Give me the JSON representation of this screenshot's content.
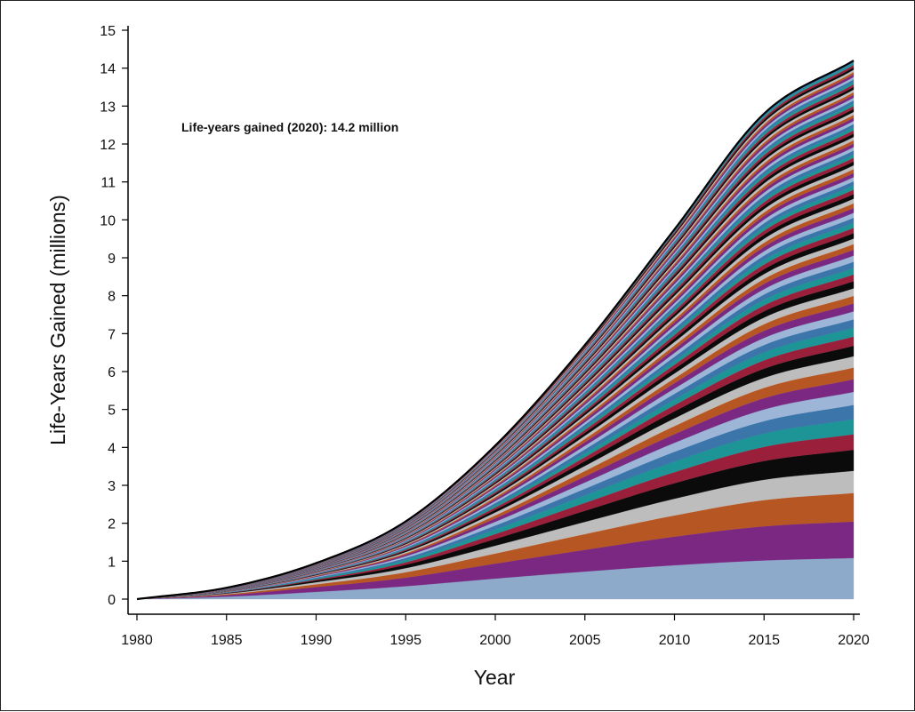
{
  "chart_data": {
    "type": "area",
    "stacked": true,
    "xlabel": "Year",
    "ylabel": "Life-Years Gained (millions)",
    "annotation": "Life-years gained (2020): 14.2 million",
    "xlim": [
      1980,
      2020
    ],
    "ylim": [
      0,
      15
    ],
    "x_ticks": [
      1980,
      1985,
      1990,
      1995,
      2000,
      2005,
      2010,
      2015,
      2020
    ],
    "y_ticks": [
      0,
      1,
      2,
      3,
      4,
      5,
      6,
      7,
      8,
      9,
      10,
      11,
      12,
      13,
      14,
      15
    ],
    "grid": false,
    "legend": "none",
    "x": [
      1980,
      1985,
      1990,
      1995,
      2000,
      2005,
      2010,
      2015,
      2020
    ],
    "total": [
      0.0,
      0.3,
      0.95,
      2.05,
      4.05,
      6.7,
      9.75,
      12.8,
      14.2
    ],
    "bands": [
      {
        "color": "#8eaacb",
        "values": [
          0.0,
          0.08,
          0.21,
          0.38,
          0.55,
          0.7,
          0.83,
          0.93,
          0.98
        ]
      },
      {
        "color": "#7b2883",
        "values": [
          0.0,
          0.05,
          0.14,
          0.25,
          0.4,
          0.55,
          0.7,
          0.82,
          0.87
        ]
      },
      {
        "color": "#b55623",
        "values": [
          0.0,
          0.03,
          0.08,
          0.16,
          0.27,
          0.4,
          0.52,
          0.63,
          0.68
        ]
      },
      {
        "color": "#bdbdbd",
        "values": [
          0.0,
          0.02,
          0.06,
          0.12,
          0.21,
          0.31,
          0.41,
          0.49,
          0.53
        ]
      },
      {
        "color": "#0b0b0b",
        "values": [
          0.0,
          0.015,
          0.05,
          0.1,
          0.18,
          0.28,
          0.38,
          0.45,
          0.5
        ]
      },
      {
        "color": "#9a1f3a",
        "values": [
          0.0,
          0.01,
          0.03,
          0.07,
          0.13,
          0.2,
          0.27,
          0.34,
          0.37
        ]
      },
      {
        "color": "#1d9596",
        "values": [
          0.0,
          0.01,
          0.03,
          0.07,
          0.12,
          0.19,
          0.26,
          0.32,
          0.36
        ]
      },
      {
        "color": "#3c75a9",
        "values": [
          0.0,
          0.008,
          0.025,
          0.06,
          0.11,
          0.17,
          0.24,
          0.3,
          0.34
        ]
      },
      {
        "color": "#9db5d6",
        "values": [
          0.0,
          0.007,
          0.02,
          0.05,
          0.1,
          0.16,
          0.22,
          0.28,
          0.31
        ]
      },
      {
        "color": "#7b2883",
        "values": [
          0.0,
          0.006,
          0.018,
          0.045,
          0.09,
          0.15,
          0.21,
          0.27,
          0.3
        ]
      },
      {
        "color": "#b55623",
        "values": [
          0.0,
          0.005,
          0.015,
          0.04,
          0.08,
          0.14,
          0.2,
          0.25,
          0.28
        ]
      },
      {
        "color": "#bdbdbd",
        "values": [
          0.0,
          0.005,
          0.015,
          0.04,
          0.08,
          0.13,
          0.19,
          0.24,
          0.27
        ]
      },
      {
        "color": "#0b0b0b",
        "values": [
          0.0,
          0.005,
          0.015,
          0.035,
          0.07,
          0.12,
          0.17,
          0.22,
          0.25
        ]
      },
      {
        "color": "#9a1f3a",
        "values": [
          0.0,
          0.004,
          0.013,
          0.03,
          0.06,
          0.1,
          0.15,
          0.2,
          0.22
        ]
      },
      {
        "color": "#1d9596",
        "values": [
          0.0,
          0.004,
          0.012,
          0.03,
          0.06,
          0.1,
          0.14,
          0.19,
          0.21
        ]
      },
      {
        "color": "#3c75a9",
        "values": [
          0.0,
          0.004,
          0.012,
          0.03,
          0.06,
          0.1,
          0.14,
          0.18,
          0.2
        ]
      },
      {
        "color": "#9db5d6",
        "values": [
          0.0,
          0.004,
          0.011,
          0.028,
          0.055,
          0.09,
          0.13,
          0.17,
          0.19
        ]
      },
      {
        "color": "#7b2883",
        "values": [
          0.0,
          0.003,
          0.01,
          0.026,
          0.05,
          0.09,
          0.13,
          0.17,
          0.19
        ]
      },
      {
        "color": "#b55623",
        "values": [
          0.0,
          0.003,
          0.01,
          0.025,
          0.05,
          0.085,
          0.12,
          0.16,
          0.18
        ]
      },
      {
        "color": "#bdbdbd",
        "values": [
          0.0,
          0.003,
          0.01,
          0.024,
          0.048,
          0.08,
          0.12,
          0.16,
          0.18
        ]
      },
      {
        "color": "#0b0b0b",
        "values": [
          0.0,
          0.003,
          0.009,
          0.022,
          0.045,
          0.075,
          0.11,
          0.15,
          0.17
        ]
      },
      {
        "color": "#9a1f3a",
        "values": [
          0.0,
          0.003,
          0.009,
          0.021,
          0.042,
          0.07,
          0.1,
          0.14,
          0.16
        ]
      },
      {
        "color": "#1d9596",
        "values": [
          0.0,
          0.003,
          0.008,
          0.02,
          0.04,
          0.068,
          0.1,
          0.135,
          0.155
        ]
      },
      {
        "color": "#3c75a9",
        "values": [
          0.0,
          0.003,
          0.008,
          0.02,
          0.04,
          0.066,
          0.098,
          0.13,
          0.15
        ]
      },
      {
        "color": "#9db5d6",
        "values": [
          0.0,
          0.002,
          0.008,
          0.019,
          0.038,
          0.064,
          0.095,
          0.128,
          0.145
        ]
      },
      {
        "color": "#7b2883",
        "values": [
          0.0,
          0.002,
          0.007,
          0.018,
          0.036,
          0.062,
          0.092,
          0.125,
          0.14
        ]
      },
      {
        "color": "#b55623",
        "values": [
          0.0,
          0.002,
          0.007,
          0.018,
          0.035,
          0.06,
          0.09,
          0.12,
          0.135
        ]
      },
      {
        "color": "#bdbdbd",
        "values": [
          0.0,
          0.002,
          0.007,
          0.017,
          0.034,
          0.058,
          0.087,
          0.118,
          0.132
        ]
      },
      {
        "color": "#0b0b0b",
        "values": [
          0.0,
          0.002,
          0.007,
          0.017,
          0.033,
          0.056,
          0.085,
          0.115,
          0.13
        ]
      },
      {
        "color": "#9a1f3a",
        "values": [
          0.0,
          0.002,
          0.006,
          0.016,
          0.032,
          0.054,
          0.082,
          0.112,
          0.125
        ]
      },
      {
        "color": "#1d9596",
        "values": [
          0.0,
          0.002,
          0.006,
          0.016,
          0.031,
          0.053,
          0.08,
          0.11,
          0.122
        ]
      },
      {
        "color": "#3c75a9",
        "values": [
          0.0,
          0.002,
          0.006,
          0.015,
          0.03,
          0.052,
          0.078,
          0.107,
          0.12
        ]
      },
      {
        "color": "#9db5d6",
        "values": [
          0.0,
          0.002,
          0.006,
          0.015,
          0.03,
          0.05,
          0.076,
          0.105,
          0.117
        ]
      },
      {
        "color": "#7b2883",
        "values": [
          0.0,
          0.002,
          0.006,
          0.015,
          0.029,
          0.049,
          0.074,
          0.102,
          0.115
        ]
      },
      {
        "color": "#b55623",
        "values": [
          0.0,
          0.002,
          0.005,
          0.014,
          0.028,
          0.048,
          0.072,
          0.1,
          0.112
        ]
      },
      {
        "color": "#bdbdbd",
        "values": [
          0.0,
          0.002,
          0.005,
          0.014,
          0.027,
          0.047,
          0.07,
          0.098,
          0.11
        ]
      },
      {
        "color": "#0b0b0b",
        "values": [
          0.0,
          0.002,
          0.005,
          0.013,
          0.027,
          0.046,
          0.069,
          0.096,
          0.108
        ]
      },
      {
        "color": "#9a1f3a",
        "values": [
          0.0,
          0.002,
          0.005,
          0.013,
          0.026,
          0.045,
          0.068,
          0.094,
          0.105
        ]
      },
      {
        "color": "#1d9596",
        "values": [
          0.0,
          0.002,
          0.005,
          0.013,
          0.025,
          0.044,
          0.066,
          0.092,
          0.103
        ]
      },
      {
        "color": "#3c75a9",
        "values": [
          0.0,
          0.002,
          0.005,
          0.012,
          0.025,
          0.043,
          0.065,
          0.09,
          0.1
        ]
      },
      {
        "color": "#9db5d6",
        "values": [
          0.0,
          0.002,
          0.005,
          0.012,
          0.024,
          0.042,
          0.064,
          0.088,
          0.098
        ]
      },
      {
        "color": "#7b2883",
        "values": [
          0.0,
          0.002,
          0.005,
          0.012,
          0.024,
          0.041,
          0.062,
          0.086,
          0.096
        ]
      },
      {
        "color": "#b55623",
        "values": [
          0.0,
          0.002,
          0.004,
          0.012,
          0.023,
          0.04,
          0.061,
          0.085,
          0.094
        ]
      },
      {
        "color": "#bdbdbd",
        "values": [
          0.0,
          0.002,
          0.004,
          0.011,
          0.023,
          0.039,
          0.06,
          0.083,
          0.092
        ]
      },
      {
        "color": "#0b0b0b",
        "values": [
          0.0,
          0.002,
          0.004,
          0.011,
          0.022,
          0.038,
          0.059,
          0.082,
          0.09
        ]
      },
      {
        "color": "#9a1f3a",
        "values": [
          0.0,
          0.002,
          0.004,
          0.011,
          0.022,
          0.038,
          0.058,
          0.08,
          0.088
        ]
      },
      {
        "color": "#1d9596",
        "values": [
          0.0,
          0.002,
          0.004,
          0.011,
          0.021,
          0.037,
          0.057,
          0.079,
          0.087
        ]
      },
      {
        "color": "#3c75a9",
        "values": [
          0.0,
          0.002,
          0.004,
          0.01,
          0.021,
          0.036,
          0.056,
          0.078,
          0.085
        ]
      },
      {
        "color": "#9db5d6",
        "values": [
          0.0,
          0.001,
          0.004,
          0.01,
          0.02,
          0.035,
          0.055,
          0.076,
          0.084
        ]
      },
      {
        "color": "#7b2883",
        "values": [
          0.0,
          0.001,
          0.004,
          0.01,
          0.02,
          0.035,
          0.054,
          0.075,
          0.082
        ]
      },
      {
        "color": "#b55623",
        "values": [
          0.0,
          0.001,
          0.004,
          0.01,
          0.02,
          0.034,
          0.053,
          0.074,
          0.081
        ]
      },
      {
        "color": "#bdbdbd",
        "values": [
          0.0,
          0.001,
          0.004,
          0.01,
          0.019,
          0.033,
          0.052,
          0.073,
          0.08
        ]
      },
      {
        "color": "#0b0b0b",
        "values": [
          0.0,
          0.001,
          0.004,
          0.01,
          0.019,
          0.033,
          0.051,
          0.072,
          0.078
        ]
      },
      {
        "color": "#9a1f3a",
        "values": [
          0.0,
          0.001,
          0.004,
          0.009,
          0.019,
          0.032,
          0.05,
          0.071,
          0.077
        ]
      },
      {
        "color": "#1d9596",
        "values": [
          0.0,
          0.001,
          0.003,
          0.009,
          0.018,
          0.032,
          0.05,
          0.07,
          0.076
        ]
      },
      {
        "color": "#3c75a9",
        "values": [
          0.0,
          0.001,
          0.003,
          0.009,
          0.018,
          0.031,
          0.049,
          0.069,
          0.075
        ]
      },
      {
        "color": "#9db5d6",
        "values": [
          0.0,
          0.001,
          0.003,
          0.009,
          0.018,
          0.031,
          0.048,
          0.068,
          0.074
        ]
      },
      {
        "color": "#7b2883",
        "values": [
          0.0,
          0.001,
          0.003,
          0.009,
          0.017,
          0.03,
          0.047,
          0.067,
          0.073
        ]
      },
      {
        "color": "#b55623",
        "values": [
          0.0,
          0.001,
          0.003,
          0.009,
          0.017,
          0.03,
          0.047,
          0.066,
          0.072
        ]
      },
      {
        "color": "#bdbdbd",
        "values": [
          0.0,
          0.001,
          0.003,
          0.008,
          0.017,
          0.029,
          0.046,
          0.065,
          0.071
        ]
      },
      {
        "color": "#0b0b0b",
        "values": [
          0.0,
          0.001,
          0.003,
          0.008,
          0.016,
          0.029,
          0.045,
          0.064,
          0.07
        ]
      },
      {
        "color": "#9a1f3a",
        "values": [
          0.0,
          0.001,
          0.003,
          0.008,
          0.016,
          0.028,
          0.045,
          0.063,
          0.069
        ]
      },
      {
        "color": "#1d9596",
        "values": [
          0.0,
          0.001,
          0.003,
          0.008,
          0.016,
          0.028,
          0.044,
          0.062,
          0.068
        ]
      },
      {
        "color": "#3c75a9",
        "values": [
          0.0,
          0.001,
          0.003,
          0.008,
          0.016,
          0.027,
          0.043,
          0.061,
          0.067
        ]
      },
      {
        "color": "#9db5d6",
        "values": [
          0.0,
          0.001,
          0.003,
          0.008,
          0.015,
          0.027,
          0.043,
          0.06,
          0.066
        ]
      },
      {
        "color": "#7b2883",
        "values": [
          0.0,
          0.001,
          0.003,
          0.008,
          0.015,
          0.026,
          0.042,
          0.06,
          0.065
        ]
      },
      {
        "color": "#b55623",
        "values": [
          0.0,
          0.001,
          0.003,
          0.007,
          0.015,
          0.026,
          0.041,
          0.059,
          0.064
        ]
      },
      {
        "color": "#bdbdbd",
        "values": [
          0.0,
          0.001,
          0.003,
          0.007,
          0.015,
          0.026,
          0.041,
          0.058,
          0.063
        ]
      },
      {
        "color": "#0b0b0b",
        "values": [
          0.0,
          0.001,
          0.003,
          0.007,
          0.014,
          0.025,
          0.04,
          0.057,
          0.062
        ]
      },
      {
        "color": "#9a1f3a",
        "values": [
          0.0,
          0.001,
          0.003,
          0.007,
          0.014,
          0.025,
          0.04,
          0.056,
          0.061
        ]
      },
      {
        "color": "#1d9596",
        "values": [
          0.0,
          0.001,
          0.003,
          0.007,
          0.014,
          0.024,
          0.039,
          0.056,
          0.06
        ]
      },
      {
        "color": "#3c75a9",
        "values": [
          0.0,
          0.001,
          0.003,
          0.007,
          0.014,
          0.024,
          0.039,
          0.055,
          0.06
        ]
      },
      {
        "color": "#9db5d6",
        "values": [
          0.0,
          0.001,
          0.002,
          0.007,
          0.013,
          0.024,
          0.038,
          0.054,
          0.059
        ]
      },
      {
        "color": "#7b2883",
        "values": [
          0.0,
          0.001,
          0.002,
          0.007,
          0.013,
          0.023,
          0.038,
          0.054,
          0.058
        ]
      },
      {
        "color": "#b55623",
        "values": [
          0.0,
          0.001,
          0.002,
          0.006,
          0.013,
          0.023,
          0.037,
          0.053,
          0.057
        ]
      },
      {
        "color": "#bdbdbd",
        "values": [
          0.0,
          0.001,
          0.002,
          0.006,
          0.013,
          0.023,
          0.037,
          0.052,
          0.056
        ]
      },
      {
        "color": "#0b0b0b",
        "values": [
          0.0,
          0.001,
          0.002,
          0.006,
          0.013,
          0.022,
          0.036,
          0.052,
          0.056
        ]
      },
      {
        "color": "#9a1f3a",
        "values": [
          0.0,
          0.001,
          0.002,
          0.006,
          0.012,
          0.022,
          0.036,
          0.051,
          0.055
        ]
      },
      {
        "color": "#1d9596",
        "values": [
          0.0,
          0.001,
          0.002,
          0.006,
          0.012,
          0.022,
          0.035,
          0.05,
          0.054
        ]
      },
      {
        "color": "#3c75a9",
        "values": [
          0.0,
          0.001,
          0.002,
          0.006,
          0.012,
          0.021,
          0.035,
          0.05,
          0.053
        ]
      }
    ]
  }
}
